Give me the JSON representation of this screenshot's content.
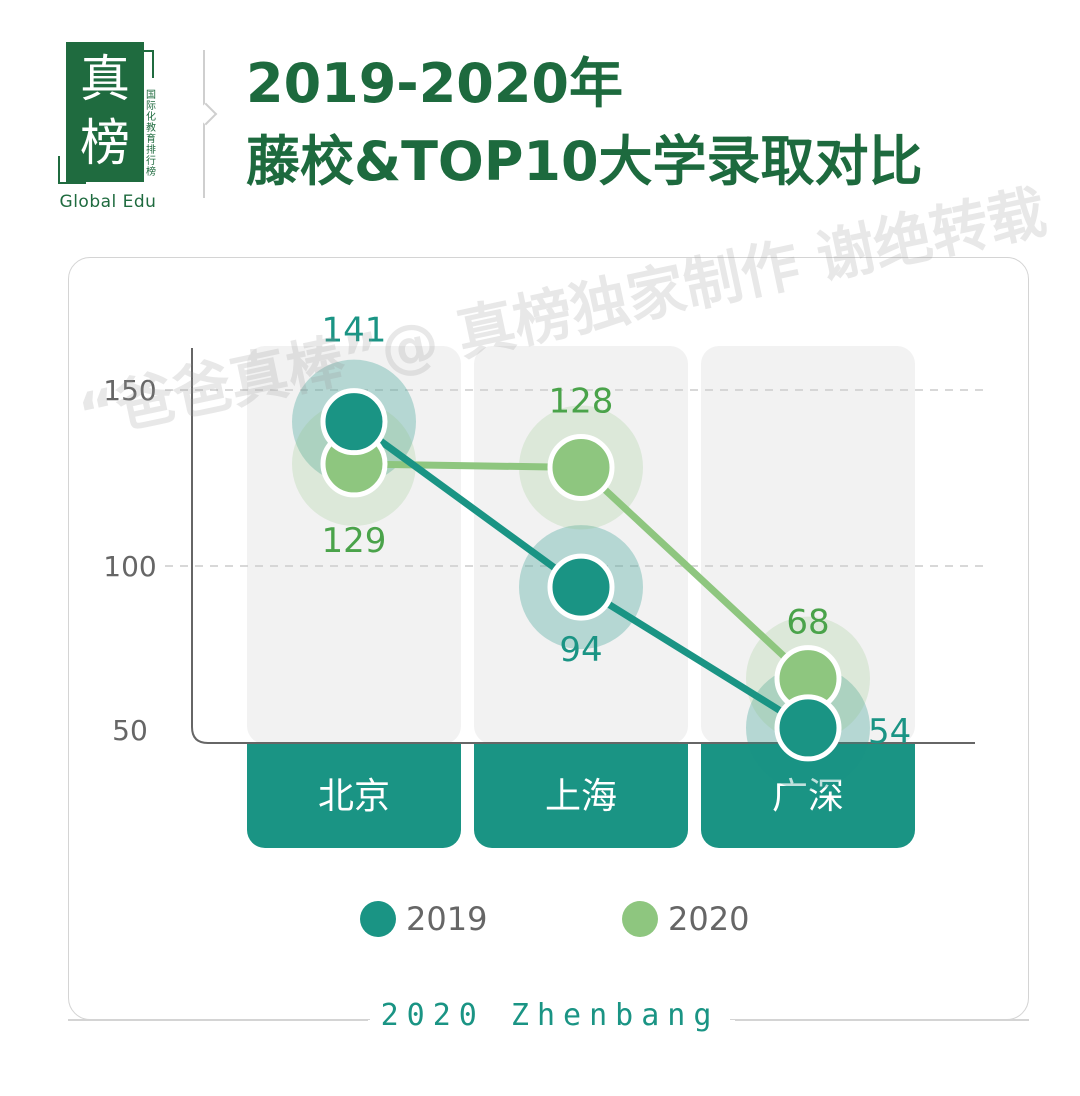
{
  "logo": {
    "char1": "真",
    "char2": "榜",
    "vertical_text": "国际化教育排行榜",
    "english": "Global Edu"
  },
  "header": {
    "title_line1": "2019-2020年",
    "title_line2": "藤校&TOP10大学录取对比"
  },
  "watermark": "“爸爸真棒”@ 真榜独家制作  谢绝转载",
  "colors": {
    "series_2019": "#1a9484",
    "series_2020": "#8ec67f",
    "label_2020": "#4aa34a",
    "title": "#1d6a3e",
    "category_bg": "#1a9484",
    "column_bg": "#f2f2f2"
  },
  "chart_data": {
    "type": "line",
    "categories": [
      "北京",
      "上海",
      "广深"
    ],
    "yticks": [
      50,
      100,
      150
    ],
    "ylim": [
      45,
      160
    ],
    "grid": "dashed horizontal at 100 and 150",
    "legend_position": "bottom",
    "series": [
      {
        "name": "2019",
        "values": [
          141,
          94,
          54
        ]
      },
      {
        "name": "2020",
        "values": [
          129,
          128,
          68
        ]
      }
    ]
  },
  "footer": {
    "text": "2020 Zhenbang"
  }
}
